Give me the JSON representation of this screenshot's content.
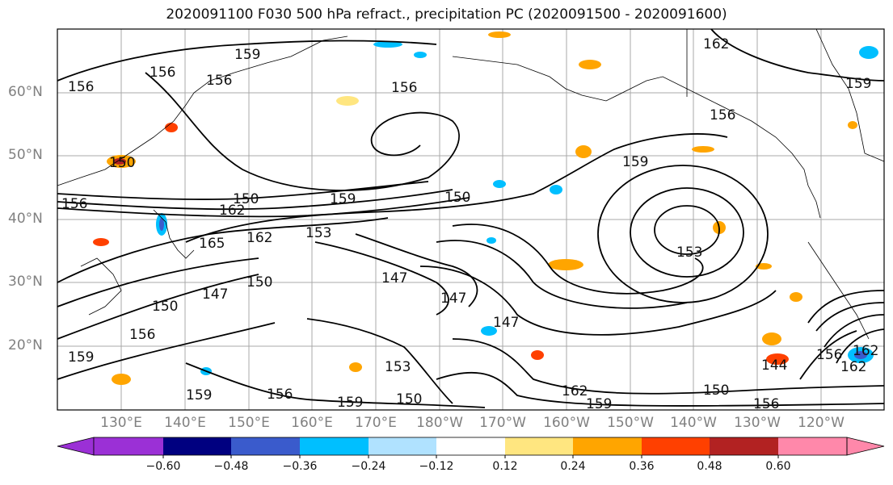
{
  "title": "2020091100 F030 500 hPa refract., precipitation PC (2020091500 - 2020091600)",
  "lat_labels": [
    "60°N",
    "50°N",
    "40°N",
    "30°N",
    "20°N"
  ],
  "lon_labels": [
    "130°E",
    "140°E",
    "150°E",
    "160°E",
    "170°E",
    "180°W",
    "170°W",
    "160°W",
    "150°W",
    "140°W",
    "130°W",
    "120°W"
  ],
  "contour_labels": [
    "156",
    "156",
    "156",
    "159",
    "156",
    "162",
    "159",
    "156",
    "150",
    "150",
    "162",
    "159",
    "150",
    "153",
    "159",
    "165",
    "162",
    "150",
    "147",
    "147",
    "150",
    "147",
    "147",
    "153",
    "156",
    "159",
    "150",
    "156",
    "159",
    "153",
    "162",
    "159",
    "150",
    "144",
    "156",
    "162",
    "162",
    "156",
    "159",
    "156"
  ],
  "colorbar": {
    "ticks": [
      "−0.60",
      "−0.48",
      "−0.36",
      "−0.24",
      "−0.12",
      "0.12",
      "0.24",
      "0.36",
      "0.48",
      "0.60"
    ],
    "colors": [
      "#9b30d6",
      "#000080",
      "#3a5bcc",
      "#00bfff",
      "#b0e2ff",
      "#ffffff",
      "#ffe680",
      "#ffa500",
      "#ff4000",
      "#b22222",
      "#ff88aa"
    ]
  }
}
